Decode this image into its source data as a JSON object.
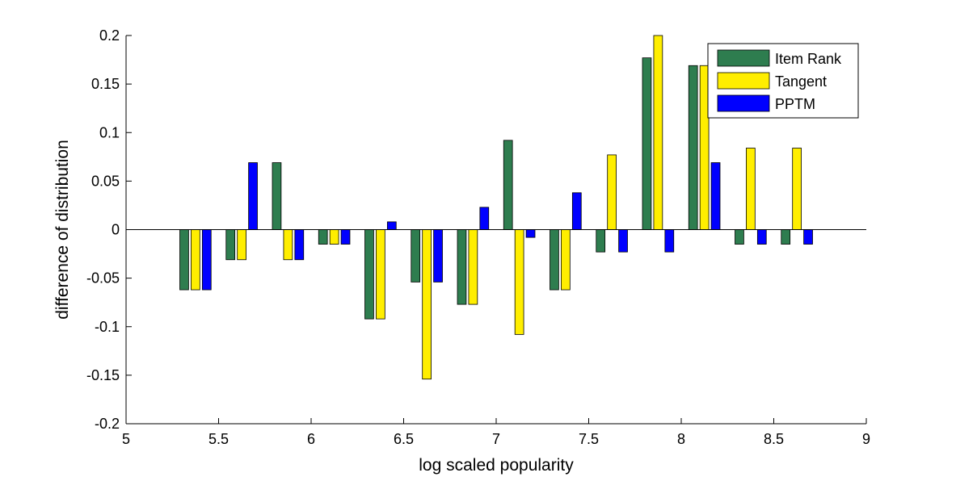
{
  "chart_data": {
    "type": "bar",
    "title": "",
    "xlabel": "log scaled popularity",
    "ylabel": "difference of distribution",
    "xlim": [
      5,
      9
    ],
    "ylim": [
      -0.2,
      0.2
    ],
    "xticks": [
      "5",
      "5.5",
      "6",
      "6.5",
      "7",
      "7.5",
      "8",
      "8.5",
      "9"
    ],
    "yticks": [
      "-0.2",
      "-0.15",
      "-0.1",
      "-0.05",
      "0",
      "0.05",
      "0.1",
      "0.15",
      "0.2"
    ],
    "x": [
      5.375,
      5.625,
      5.875,
      6.125,
      6.375,
      6.625,
      6.875,
      7.125,
      7.375,
      7.625,
      7.875,
      8.125,
      8.375,
      8.625
    ],
    "series": [
      {
        "name": "Item Rank",
        "color": "#2e7d4f",
        "values": [
          -0.062,
          -0.031,
          0.069,
          -0.015,
          -0.092,
          -0.054,
          -0.077,
          0.092,
          -0.062,
          -0.023,
          0.177,
          0.169,
          -0.015,
          -0.015
        ]
      },
      {
        "name": "Tangent",
        "color": "#ffee00",
        "values": [
          -0.062,
          -0.031,
          -0.031,
          -0.015,
          -0.092,
          -0.154,
          -0.077,
          -0.108,
          -0.062,
          0.077,
          0.2,
          0.169,
          0.084,
          0.084
        ]
      },
      {
        "name": "PPTM",
        "color": "#0000ff",
        "values": [
          -0.062,
          0.069,
          -0.031,
          -0.015,
          0.008,
          -0.054,
          0.023,
          -0.008,
          0.038,
          -0.023,
          -0.023,
          0.069,
          -0.015,
          -0.015
        ]
      }
    ],
    "legend": "top-right",
    "grid": false
  }
}
